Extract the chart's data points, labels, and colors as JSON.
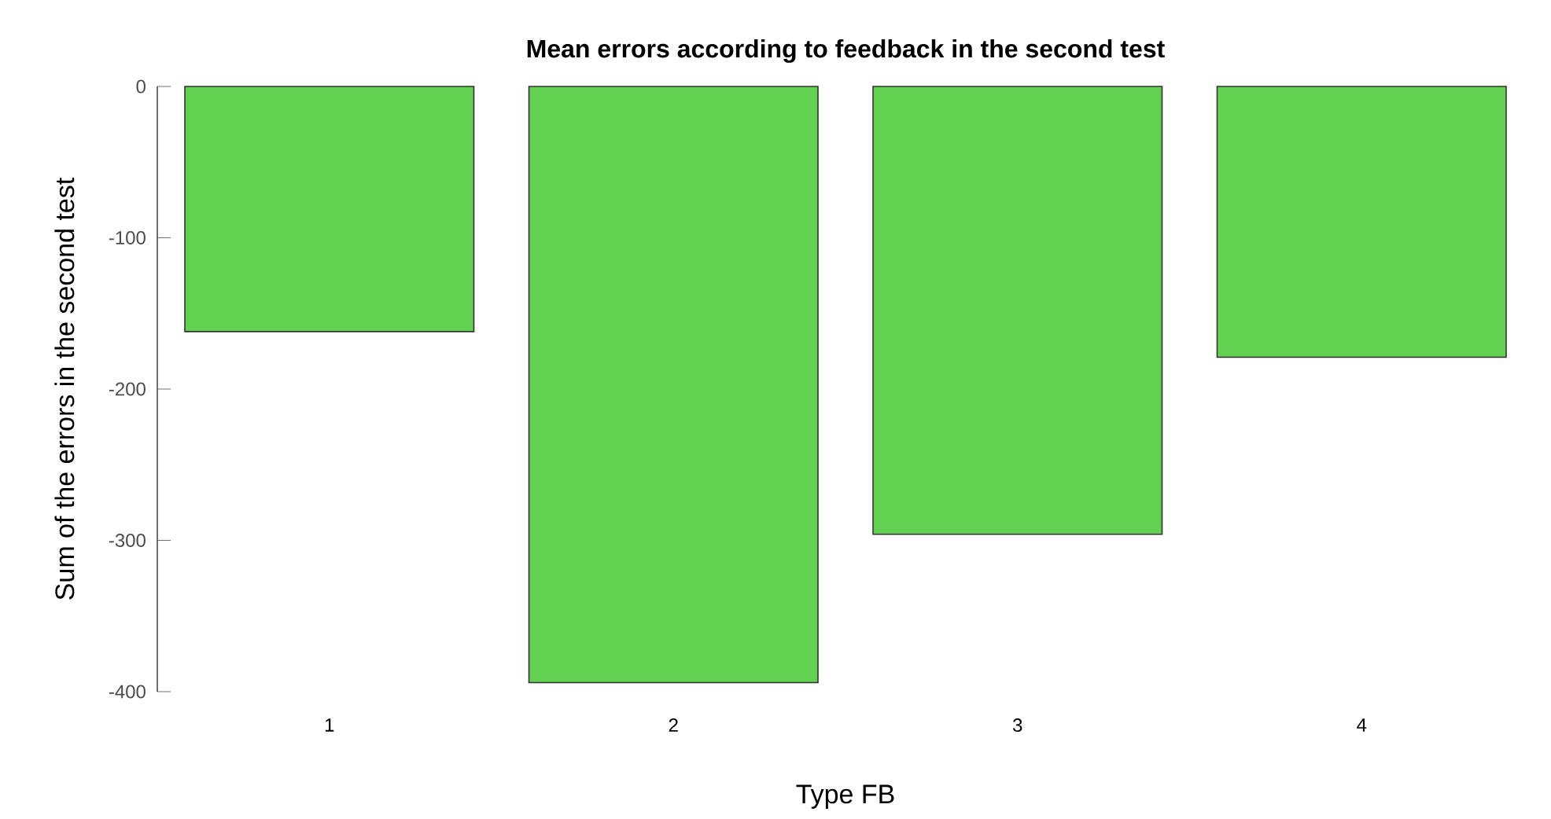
{
  "chart_data": {
    "type": "bar",
    "title": "**Mean errors according to feedback in the second test**",
    "xlabel": "Type FB",
    "ylabel": "Sum of the errors in the second test",
    "categories": [
      "1",
      "2",
      "3",
      "4"
    ],
    "values": [
      -162,
      -394,
      -296,
      -179
    ],
    "color": "#62d152",
    "ylim": [
      -400,
      0
    ],
    "yticks": [
      -400,
      -300,
      -200,
      -100,
      0
    ]
  }
}
